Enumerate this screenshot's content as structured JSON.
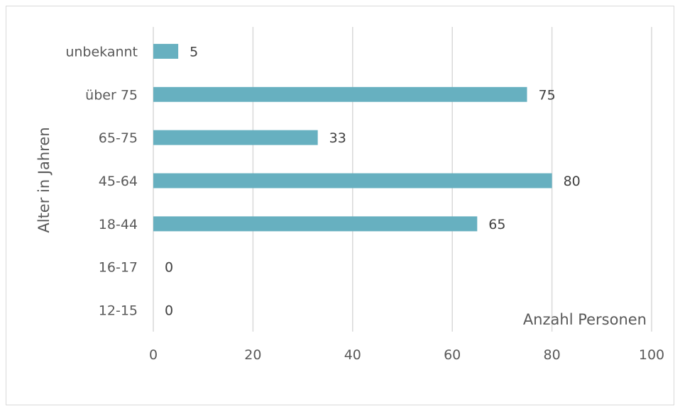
{
  "chart_data": {
    "type": "bar",
    "orientation": "horizontal",
    "categories": [
      "12-15",
      "16-17",
      "18-44",
      "45-64",
      "65-75",
      "über 75",
      "unbekannt"
    ],
    "values": [
      0,
      0,
      65,
      80,
      33,
      75,
      5
    ],
    "title": "",
    "xlabel": "Anzahl Personen",
    "ylabel": "Alter in Jahren",
    "xlim": [
      0,
      100
    ],
    "xticks": [
      "0",
      "20",
      "40",
      "60",
      "80",
      "100"
    ],
    "grid": "vertical",
    "legend": "none",
    "bar_color": "#67b0c0",
    "data_labels": true
  }
}
